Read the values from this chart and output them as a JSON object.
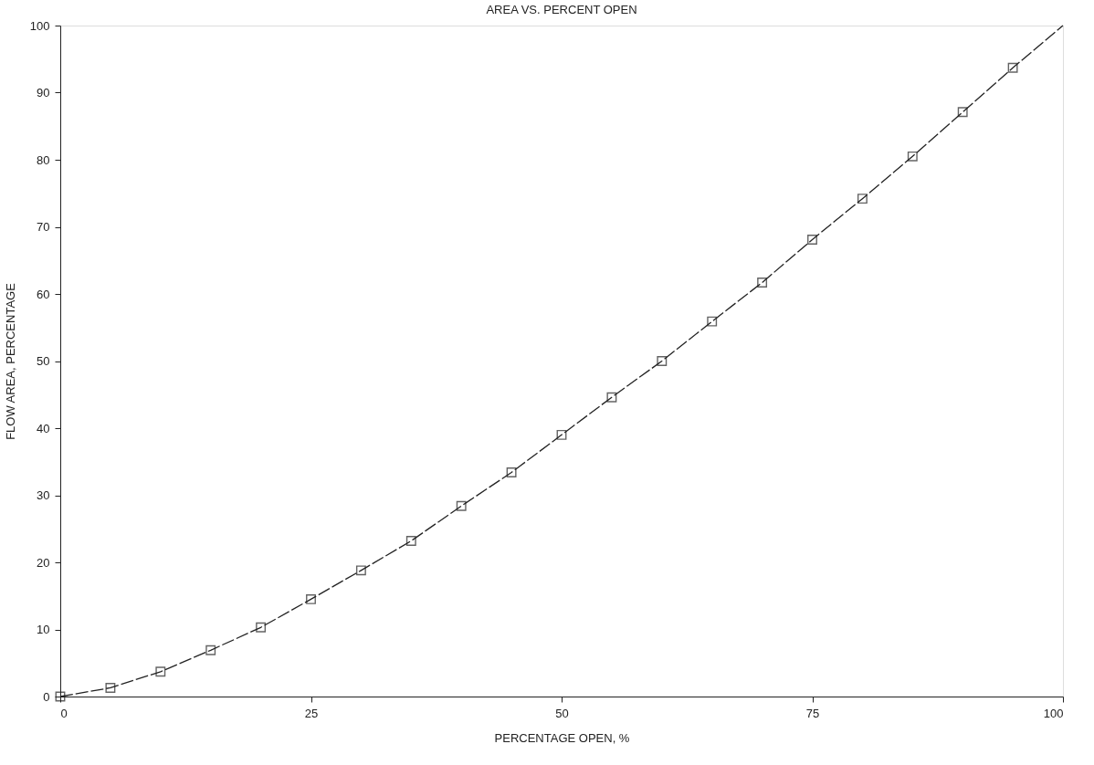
{
  "chart_data": {
    "type": "line",
    "title": "AREA VS. PERCENT OPEN",
    "xlabel": "PERCENTAGE OPEN, %",
    "ylabel": "FLOW AREA,  PERCENTAGE",
    "xlim": [
      0,
      100
    ],
    "ylim": [
      0,
      100
    ],
    "xticks": [
      0,
      25,
      50,
      75,
      100
    ],
    "yticks": [
      0,
      10,
      20,
      30,
      40,
      50,
      60,
      70,
      80,
      90,
      100
    ],
    "grid": false,
    "series": [
      {
        "color": "#222222",
        "marker": "none",
        "line_style": "dashed",
        "x": [
          0,
          5,
          10,
          15,
          20,
          25,
          30,
          35,
          40,
          45,
          50,
          55,
          60,
          65,
          70,
          75,
          80,
          85,
          90,
          95,
          100
        ],
        "values": [
          0,
          1.3,
          3.7,
          6.9,
          10.3,
          14.5,
          18.8,
          23.2,
          28.4,
          33.4,
          39.0,
          44.6,
          50.0,
          55.9,
          61.7,
          68.1,
          74.2,
          80.5,
          87.1,
          93.7,
          100
        ]
      },
      {
        "type": "scatter",
        "color": "#222222",
        "marker": "square",
        "x": [
          0,
          5,
          10,
          15,
          20,
          25,
          30,
          35,
          40,
          45,
          50,
          55,
          60,
          65,
          70,
          75,
          80,
          85,
          90,
          95
        ],
        "values": [
          0,
          1.3,
          3.7,
          6.9,
          10.3,
          14.5,
          18.8,
          23.2,
          28.4,
          33.4,
          39.0,
          44.6,
          50.0,
          55.9,
          61.7,
          68.1,
          74.2,
          80.5,
          87.1,
          93.7
        ]
      }
    ]
  }
}
